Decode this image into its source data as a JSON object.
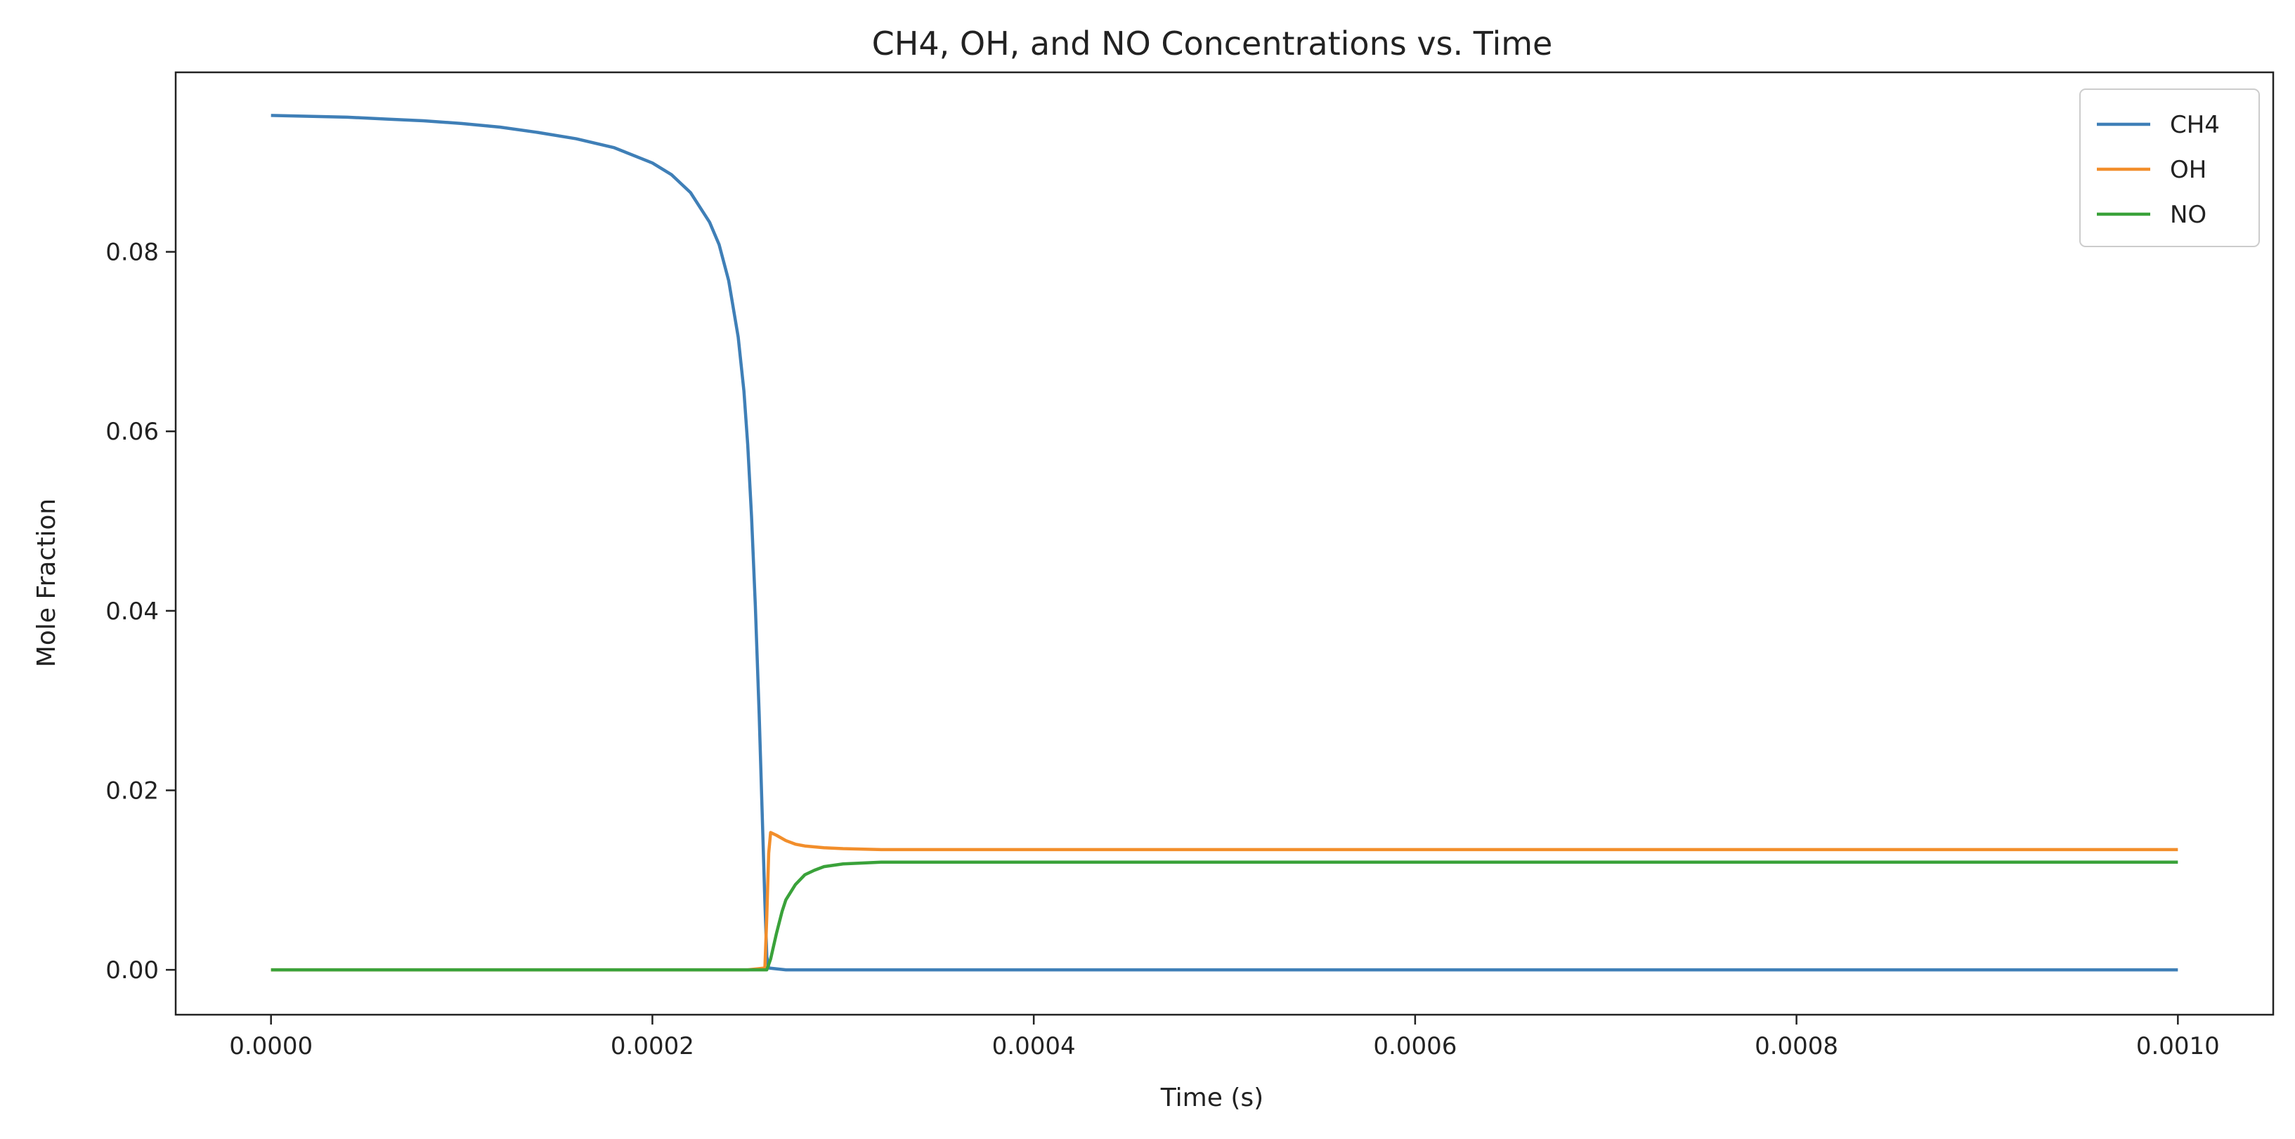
{
  "chart_data": {
    "type": "line",
    "title": "CH4, OH, and NO Concentrations vs. Time",
    "xlabel": "Time (s)",
    "ylabel": "Mole Fraction",
    "xlim": [
      -5e-05,
      0.00105
    ],
    "ylim": [
      -0.005,
      0.1
    ],
    "x_ticks": [
      {
        "value": 0.0,
        "label": "0.0000"
      },
      {
        "value": 0.0002,
        "label": "0.0002"
      },
      {
        "value": 0.0004,
        "label": "0.0004"
      },
      {
        "value": 0.0006,
        "label": "0.0006"
      },
      {
        "value": 0.0008,
        "label": "0.0008"
      },
      {
        "value": 0.001,
        "label": "0.0010"
      }
    ],
    "y_ticks": [
      {
        "value": 0.0,
        "label": "0.00"
      },
      {
        "value": 0.02,
        "label": "0.02"
      },
      {
        "value": 0.04,
        "label": "0.04"
      },
      {
        "value": 0.06,
        "label": "0.06"
      },
      {
        "value": 0.08,
        "label": "0.08"
      }
    ],
    "grid": false,
    "legend_position": "top-right",
    "series": [
      {
        "name": "CH4",
        "color": "#3f7fb7",
        "x": [
          0.0,
          2e-05,
          4e-05,
          6e-05,
          8e-05,
          0.0001,
          0.00012,
          0.00014,
          0.00016,
          0.00018,
          0.0002,
          0.00021,
          0.00022,
          0.00023,
          0.000235,
          0.00024,
          0.000245,
          0.000248,
          0.00025,
          0.000252,
          0.000254,
          0.000256,
          0.000257,
          0.000258,
          0.000259,
          0.00026,
          0.000261,
          0.00027,
          0.0003,
          0.0004,
          0.0005,
          0.0006,
          0.0007,
          0.0008,
          0.0009,
          0.001
        ],
        "y": [
          0.0952,
          0.0951,
          0.095,
          0.0948,
          0.0946,
          0.0943,
          0.0939,
          0.0933,
          0.0926,
          0.0916,
          0.0899,
          0.0886,
          0.0866,
          0.0833,
          0.0808,
          0.0768,
          0.0705,
          0.0645,
          0.0585,
          0.0505,
          0.0405,
          0.0285,
          0.0215,
          0.0145,
          0.0075,
          0.0015,
          0.0002,
          0.0,
          0.0,
          0.0,
          0.0,
          0.0,
          0.0,
          0.0,
          0.0,
          0.0
        ]
      },
      {
        "name": "OH",
        "color": "#f28e2b",
        "x": [
          0.0,
          0.0001,
          0.0002,
          0.00025,
          0.000259,
          0.00026,
          0.000261,
          0.000262,
          0.000265,
          0.00027,
          0.000275,
          0.00028,
          0.00029,
          0.0003,
          0.00032,
          0.0004,
          0.0006,
          0.0008,
          0.001
        ],
        "y": [
          0.0,
          0.0,
          0.0,
          0.0,
          0.0002,
          0.006,
          0.013,
          0.0153,
          0.015,
          0.0144,
          0.014,
          0.0138,
          0.0136,
          0.0135,
          0.0134,
          0.0134,
          0.0134,
          0.0134,
          0.0134
        ]
      },
      {
        "name": "NO",
        "color": "#3aa23a",
        "x": [
          0.0,
          0.0001,
          0.0002,
          0.00025,
          0.00026,
          0.000262,
          0.000265,
          0.000268,
          0.00027,
          0.000275,
          0.00028,
          0.000285,
          0.00029,
          0.0003,
          0.00031,
          0.00032,
          0.00035,
          0.0004,
          0.0006,
          0.0008,
          0.001
        ],
        "y": [
          0.0,
          0.0,
          0.0,
          0.0,
          0.0,
          0.0012,
          0.004,
          0.0065,
          0.0078,
          0.0095,
          0.0106,
          0.0111,
          0.0115,
          0.0118,
          0.0119,
          0.012,
          0.012,
          0.012,
          0.012,
          0.012,
          0.012
        ]
      }
    ]
  }
}
